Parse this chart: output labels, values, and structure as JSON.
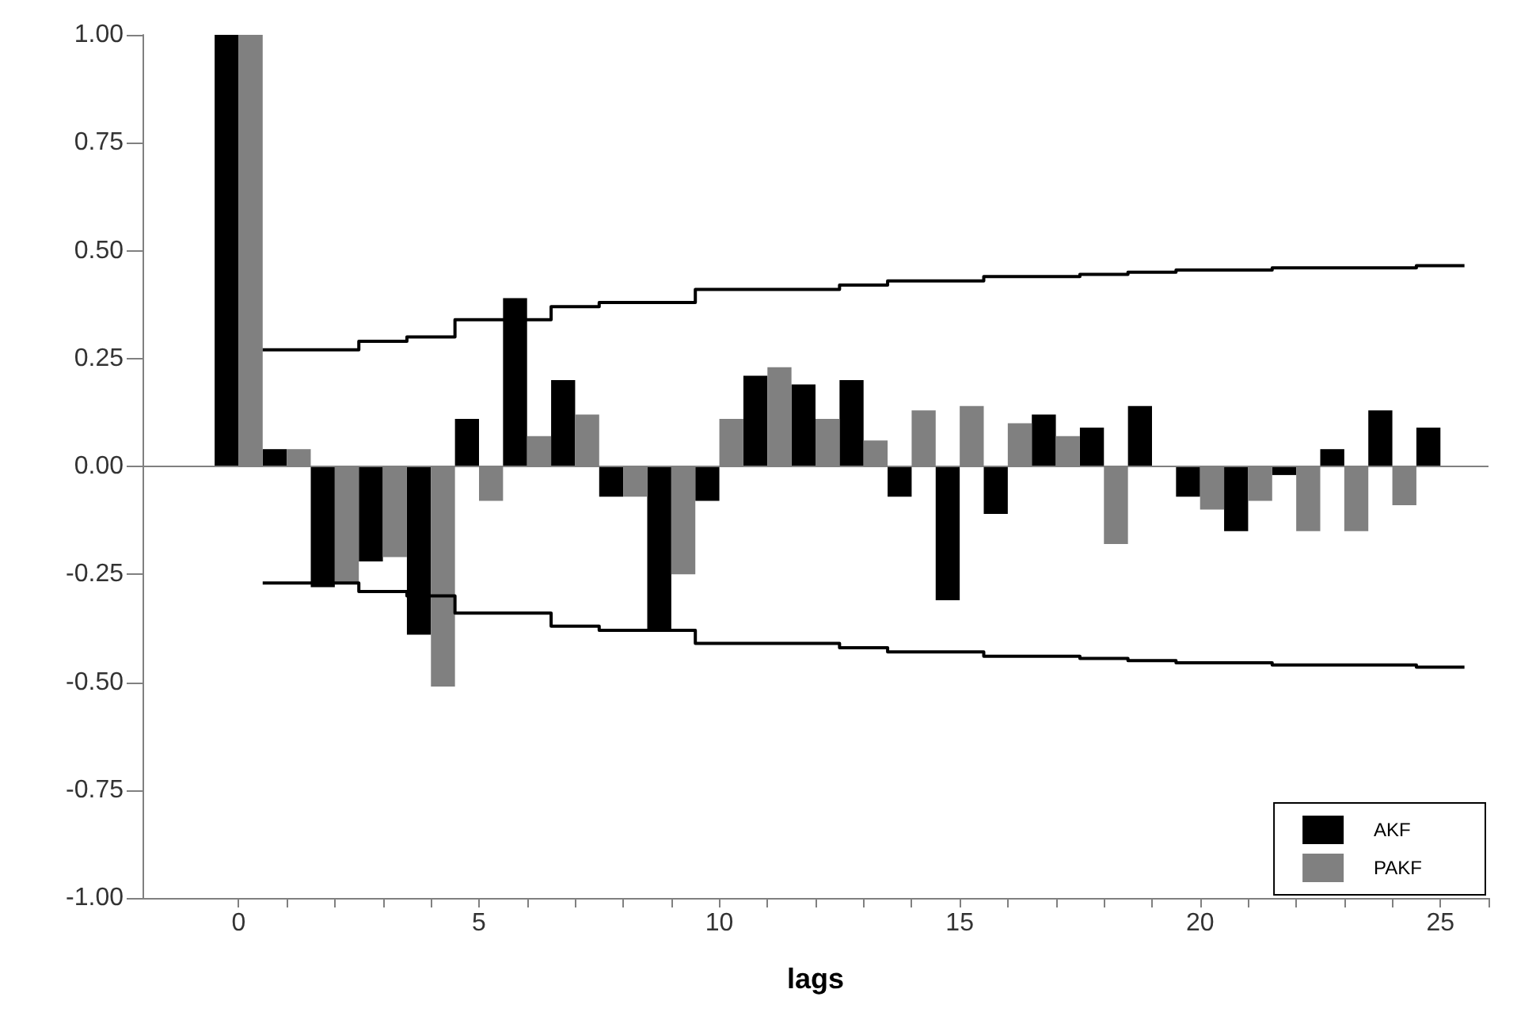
{
  "chart_data": {
    "type": "bar",
    "xlabel": "lags",
    "x": [
      0,
      1,
      2,
      3,
      4,
      5,
      6,
      7,
      8,
      9,
      10,
      11,
      12,
      13,
      14,
      15,
      16,
      17,
      18,
      19,
      20,
      21,
      22,
      23,
      24,
      25
    ],
    "series": [
      {
        "name": "AKF",
        "color": "#000000",
        "values": [
          1.0,
          0.04,
          -0.28,
          -0.22,
          -0.39,
          0.11,
          0.39,
          0.2,
          -0.07,
          -0.38,
          -0.08,
          0.21,
          0.19,
          0.2,
          -0.07,
          -0.31,
          -0.11,
          0.12,
          0.09,
          0.14,
          -0.07,
          -0.15,
          -0.02,
          0.04,
          0.13,
          0.09
        ]
      },
      {
        "name": "PAKF",
        "color": "#808080",
        "values": [
          1.0,
          0.04,
          -0.27,
          -0.21,
          -0.51,
          -0.08,
          0.07,
          0.12,
          -0.07,
          -0.25,
          0.11,
          0.23,
          0.11,
          0.06,
          0.13,
          0.14,
          0.1,
          0.07,
          -0.18,
          0.0,
          -0.1,
          -0.08,
          -0.15,
          -0.15,
          -0.09,
          0.0
        ]
      },
      {
        "type": "step",
        "color": "#000000",
        "x": [
          0.5,
          2.5,
          3.5,
          4.5,
          6.5,
          7.5,
          9.5,
          12.5,
          13.5,
          15.5,
          17.5,
          18.5,
          19.5,
          21.5,
          24.5,
          25.5
        ],
        "values": [
          0.27,
          0.29,
          0.3,
          0.34,
          0.37,
          0.38,
          0.41,
          0.42,
          0.43,
          0.44,
          0.445,
          0.45,
          0.455,
          0.46,
          0.465,
          0.465
        ]
      },
      {
        "type": "step",
        "color": "#000000",
        "x": [
          0.5,
          2.5,
          3.5,
          4.5,
          6.5,
          7.5,
          9.5,
          12.5,
          13.5,
          15.5,
          17.5,
          18.5,
          19.5,
          21.5,
          24.5,
          25.5
        ],
        "values": [
          -0.27,
          -0.29,
          -0.3,
          -0.34,
          -0.37,
          -0.38,
          -0.41,
          -0.42,
          -0.43,
          -0.44,
          -0.445,
          -0.45,
          -0.455,
          -0.46,
          -0.465,
          -0.465
        ]
      }
    ],
    "xlim": [
      -2,
      26
    ],
    "xticks": [
      0,
      {
        "value": 1,
        "label": null
      },
      {
        "value": 2,
        "label": null
      },
      {
        "value": 3,
        "label": null
      },
      {
        "value": 4,
        "label": null
      },
      5,
      {
        "value": 6,
        "label": null
      },
      {
        "value": 7,
        "label": null
      },
      {
        "value": 8,
        "label": null
      },
      {
        "value": 9,
        "label": null
      },
      10,
      {
        "value": 11,
        "label": null
      },
      {
        "value": 12,
        "label": null
      },
      {
        "value": 13,
        "label": null
      },
      {
        "value": 14,
        "label": null
      },
      15,
      {
        "value": 16,
        "label": null
      },
      {
        "value": 17,
        "label": null
      },
      {
        "value": 18,
        "label": null
      },
      {
        "value": 19,
        "label": null
      },
      20,
      {
        "value": 21,
        "label": null
      },
      {
        "value": 22,
        "label": null
      },
      {
        "value": 23,
        "label": null
      },
      {
        "value": 24,
        "label": null
      },
      25,
      {
        "value": 26,
        "label": null
      }
    ],
    "ylim": [
      -1,
      1
    ],
    "yticks": [
      {
        "value": -1,
        "label": "-1.00"
      },
      {
        "value": -0.75,
        "label": "-0.75"
      },
      {
        "value": -0.5,
        "label": "-0.50"
      },
      {
        "value": -0.25,
        "label": "-0.25"
      },
      {
        "value": 0,
        "label": "0.00"
      },
      {
        "value": 0.25,
        "label": "0.25"
      },
      {
        "value": 0.5,
        "label": "0.50"
      },
      {
        "value": 0.75,
        "label": "0.75"
      },
      {
        "value": 1,
        "label": "1.00"
      }
    ],
    "ref_lines": [
      {
        "axis": "y",
        "value": 0,
        "color": "#808080"
      }
    ],
    "grid": false,
    "legend": "bottom right"
  }
}
